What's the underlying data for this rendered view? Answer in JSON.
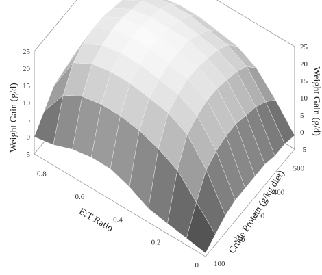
{
  "chart_data": {
    "type": "surface3d",
    "x_axis": {
      "label": "E:T Ratio",
      "ticks": [
        "0",
        "0.2",
        "0.4",
        "0.6",
        "0.8"
      ],
      "range": [
        0,
        0.9
      ]
    },
    "y_axis": {
      "label": "Crude Protein (g/kg diet)",
      "ticks": [
        "100",
        "200",
        "300",
        "400",
        "500"
      ],
      "range": [
        100,
        550
      ]
    },
    "z_axis": {
      "label": "Weight Gain (g/d)",
      "ticks": [
        "-5",
        "0",
        "5",
        "10",
        "15",
        "20",
        "25"
      ],
      "range": [
        -5,
        25
      ]
    },
    "surface": {
      "x": [
        0,
        0.1,
        0.2,
        0.3,
        0.4,
        0.5,
        0.6,
        0.7,
        0.8,
        0.9
      ],
      "y": [
        100,
        150,
        200,
        250,
        300,
        350,
        400,
        450,
        500,
        550
      ],
      "z": [
        [
          -4,
          -3,
          -2,
          -1,
          2,
          4,
          4,
          3,
          1,
          0
        ],
        [
          -2,
          4,
          10,
          13,
          15,
          16,
          16,
          15,
          12,
          4
        ],
        [
          0,
          10,
          17,
          20,
          21,
          22,
          22,
          21,
          18,
          8
        ],
        [
          1,
          12,
          19,
          22,
          23,
          24,
          24,
          23,
          20,
          9
        ],
        [
          1,
          13,
          20,
          23,
          24,
          25,
          25,
          24,
          21,
          10
        ],
        [
          1,
          13,
          20,
          23,
          24,
          25,
          25,
          24,
          21,
          10
        ],
        [
          1,
          12,
          19,
          22,
          24,
          24,
          24,
          23,
          20,
          9
        ],
        [
          0,
          11,
          18,
          21,
          22,
          23,
          23,
          22,
          19,
          8
        ],
        [
          0,
          9,
          16,
          19,
          20,
          21,
          21,
          20,
          17,
          6
        ],
        [
          -1,
          6,
          12,
          15,
          16,
          17,
          17,
          16,
          13,
          3
        ]
      ]
    }
  }
}
